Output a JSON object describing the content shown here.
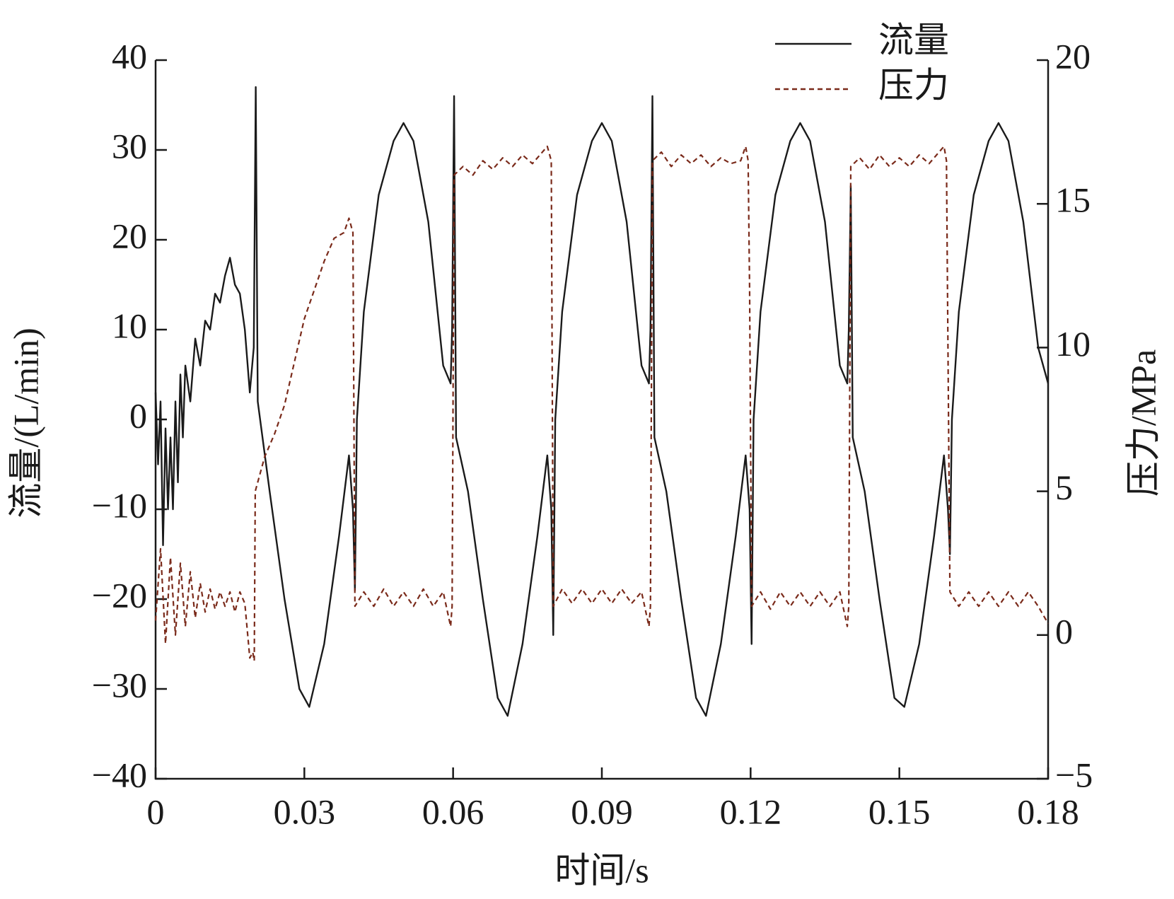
{
  "chart_data": {
    "type": "line",
    "xlabel": "时间/s",
    "ylabel": "流量/(L/min)",
    "y2label": "压力/MPa",
    "xlim": [
      0,
      0.18
    ],
    "xticks": [
      0,
      0.03,
      0.06,
      0.09,
      0.12,
      0.15,
      0.18
    ],
    "ylim": [
      -40,
      40
    ],
    "yticks": [
      {
        "value": -40,
        "label": "−40"
      },
      {
        "value": -30,
        "label": "−30"
      },
      {
        "value": -20,
        "label": "−20"
      },
      {
        "value": -10,
        "label": "−10"
      },
      0,
      10,
      20,
      30,
      40
    ],
    "y2lim": [
      -5,
      20
    ],
    "y2ticks": [
      {
        "value": -5,
        "label": "−5"
      },
      0,
      5,
      10,
      15,
      20
    ],
    "legend": "top-right",
    "series": [
      {
        "name": "流量",
        "color": "#1a1a1a",
        "dash": false,
        "x": [
          0,
          0.0005,
          0.001,
          0.0015,
          0.002,
          0.0025,
          0.003,
          0.0035,
          0.004,
          0.0045,
          0.005,
          0.0055,
          0.006,
          0.007,
          0.008,
          0.009,
          0.01,
          0.011,
          0.012,
          0.013,
          0.014,
          0.015,
          0.016,
          0.017,
          0.018,
          0.019,
          0.0198,
          0.0202,
          0.0206,
          0.023,
          0.026,
          0.029,
          0.031,
          0.034,
          0.037,
          0.039,
          0.0398,
          0.0402,
          0.0406,
          0.042,
          0.045,
          0.048,
          0.05,
          0.052,
          0.055,
          0.058,
          0.0595,
          0.0598,
          0.0602,
          0.0606,
          0.063,
          0.066,
          0.069,
          0.071,
          0.074,
          0.077,
          0.079,
          0.0798,
          0.0802,
          0.0806,
          0.082,
          0.085,
          0.088,
          0.09,
          0.092,
          0.095,
          0.098,
          0.0995,
          0.0998,
          0.1002,
          0.1006,
          0.103,
          0.106,
          0.109,
          0.111,
          0.114,
          0.117,
          0.119,
          0.1198,
          0.1202,
          0.1206,
          0.122,
          0.125,
          0.128,
          0.13,
          0.132,
          0.135,
          0.138,
          0.1395,
          0.1398,
          0.1402,
          0.1406,
          0.143,
          0.146,
          0.149,
          0.151,
          0.154,
          0.157,
          0.159,
          0.1598,
          0.1602,
          0.1606,
          0.162,
          0.165,
          0.168,
          0.17,
          0.172,
          0.175,
          0.178,
          0.18
        ],
        "values": [
          3,
          -5,
          2,
          -14,
          -1,
          -10,
          -2,
          -10,
          2,
          -7,
          5,
          -2,
          6,
          2,
          9,
          6,
          11,
          10,
          14,
          13,
          16,
          18,
          15,
          14,
          10,
          3,
          8,
          37,
          2,
          -8,
          -20,
          -30,
          -32,
          -25,
          -13,
          -4,
          -10,
          -19,
          0,
          12,
          25,
          31,
          33,
          31,
          22,
          6,
          4,
          10,
          36,
          -2,
          -8,
          -20,
          -31,
          -33,
          -25,
          -13,
          -4,
          -10,
          -24,
          0,
          12,
          25,
          31,
          33,
          31,
          22,
          6,
          4,
          10,
          36,
          -2,
          -8,
          -20,
          -31,
          -33,
          -25,
          -13,
          -4,
          -10,
          -25,
          0,
          12,
          25,
          31,
          33,
          31,
          22,
          6,
          4,
          10,
          26,
          -2,
          -8,
          -20,
          -31,
          -32,
          -25,
          -13,
          -4,
          -10,
          -15,
          0,
          12,
          25,
          31,
          33,
          31,
          22,
          8,
          4
        ]
      },
      {
        "name": "压力",
        "color": "#7a2a1a",
        "dash": true,
        "axis": "y2",
        "x": [
          0,
          0.001,
          0.002,
          0.003,
          0.004,
          0.005,
          0.006,
          0.007,
          0.008,
          0.009,
          0.01,
          0.011,
          0.012,
          0.013,
          0.014,
          0.015,
          0.016,
          0.017,
          0.018,
          0.019,
          0.0196,
          0.0199,
          0.0201,
          0.022,
          0.024,
          0.026,
          0.028,
          0.03,
          0.032,
          0.034,
          0.036,
          0.038,
          0.039,
          0.0398,
          0.0402,
          0.042,
          0.044,
          0.046,
          0.048,
          0.05,
          0.052,
          0.054,
          0.056,
          0.058,
          0.0595,
          0.0598,
          0.0602,
          0.062,
          0.064,
          0.066,
          0.068,
          0.07,
          0.072,
          0.074,
          0.076,
          0.078,
          0.079,
          0.0798,
          0.0802,
          0.082,
          0.084,
          0.086,
          0.088,
          0.09,
          0.092,
          0.094,
          0.096,
          0.098,
          0.0995,
          0.0998,
          0.1002,
          0.102,
          0.104,
          0.106,
          0.108,
          0.11,
          0.112,
          0.114,
          0.116,
          0.118,
          0.119,
          0.1195,
          0.1198,
          0.1202,
          0.122,
          0.124,
          0.126,
          0.128,
          0.13,
          0.132,
          0.134,
          0.136,
          0.138,
          0.1395,
          0.1398,
          0.1402,
          0.142,
          0.144,
          0.146,
          0.148,
          0.15,
          0.152,
          0.154,
          0.156,
          0.158,
          0.159,
          0.1595,
          0.1602,
          0.162,
          0.164,
          0.166,
          0.168,
          0.17,
          0.172,
          0.174,
          0.176,
          0.178,
          0.18
        ],
        "values": [
          0.5,
          3,
          -0.3,
          2.7,
          0,
          2.5,
          0.3,
          2.2,
          0.6,
          1.8,
          0.8,
          1.6,
          0.9,
          1.5,
          1,
          1.5,
          0.8,
          1.5,
          1.1,
          -0.8,
          -0.6,
          -0.9,
          5,
          6.2,
          7,
          8,
          9.5,
          11,
          12,
          13,
          13.8,
          14,
          14.5,
          14,
          1,
          1.5,
          1,
          1.6,
          1,
          1.5,
          1,
          1.6,
          1,
          1.5,
          0.3,
          1,
          16,
          16.3,
          16,
          16.5,
          16.2,
          16.6,
          16.3,
          16.7,
          16.4,
          16.8,
          17,
          16.5,
          1,
          1.6,
          1.1,
          1.6,
          1.1,
          1.6,
          1.1,
          1.6,
          1.1,
          1.5,
          0.3,
          1,
          16.5,
          16.8,
          16.3,
          16.7,
          16.4,
          16.7,
          16.3,
          16.6,
          16.4,
          16.5,
          17,
          16.5,
          12,
          1,
          1.5,
          0.9,
          1.5,
          1,
          1.5,
          1,
          1.5,
          1,
          1.5,
          0.3,
          1,
          16.3,
          16.6,
          16.2,
          16.7,
          16.3,
          16.6,
          16.3,
          16.7,
          16.4,
          16.8,
          17,
          16.5,
          1.5,
          1,
          1.5,
          1,
          1.5,
          1,
          1.5,
          1,
          1.5,
          1,
          0.4
        ]
      }
    ]
  }
}
